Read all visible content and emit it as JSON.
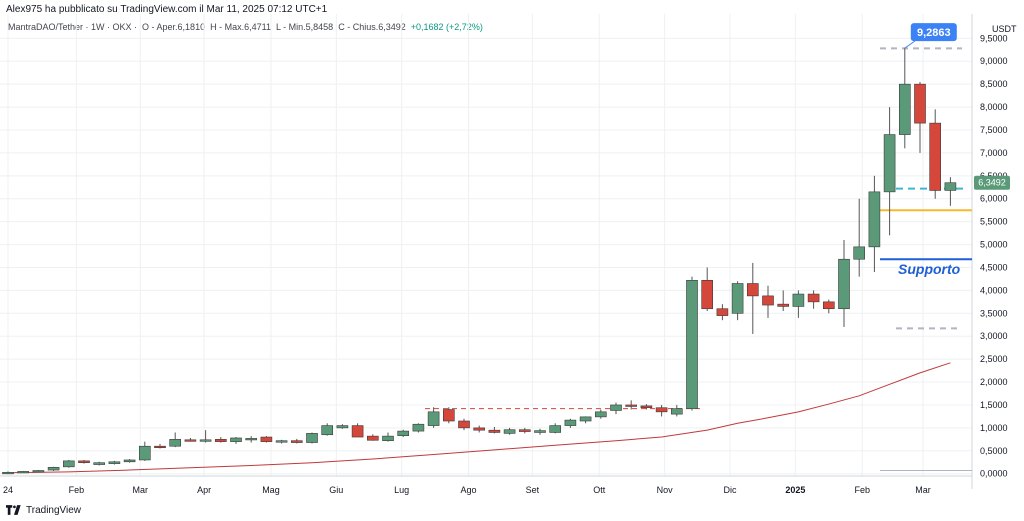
{
  "header": {
    "published_text": "Alex975 ha pubblicato su TradingView.com il Mar 11, 2025 07:12 UTC+1"
  },
  "symbol_info": {
    "text": "MantraDAO/Tether · 1W · OKX",
    "open": "O - Aper.6,1810",
    "high": "H - Max.6,4711",
    "low": "L - Min.5,8458",
    "close": "C - Chius.6,3492",
    "change": "+0,1682 (+2,72%)"
  },
  "footer": {
    "brand": "TradingView"
  },
  "colors": {
    "up": "#5b9a78",
    "down": "#d4473a",
    "ma": "#c0393b",
    "support": "#1e5fd6",
    "yellow": "#f5b92e",
    "cyan": "#3fb7d0",
    "grid": "#eef0f3",
    "text": "#131722",
    "axis_text": "#434651",
    "price_label_bg": "#5b9a78",
    "callout_bg": "#3b82f6"
  },
  "chart_data": {
    "type": "candlestick",
    "y_unit": "USDT",
    "ylim": [
      -0.05,
      9.9
    ],
    "y_ticks": [
      "0,0000",
      "0,5000",
      "1,0000",
      "1,5000",
      "2,0000",
      "2,5000",
      "3,0000",
      "3,5000",
      "4,0000",
      "4,5000",
      "5,0000",
      "5,5000",
      "6,0000",
      "6,5000",
      "7,0000",
      "7,5000",
      "8,0000",
      "8,5000",
      "9,0000",
      "9,5000"
    ],
    "y_tick_values": [
      0,
      0.5,
      1,
      1.5,
      2,
      2.5,
      3,
      3.5,
      4,
      4.5,
      5,
      5.5,
      6,
      6.5,
      7,
      7.5,
      8,
      8.5,
      9,
      9.5
    ],
    "x_labels": [
      {
        "label": "24",
        "week": 0
      },
      {
        "label": "Feb",
        "week": 4.5
      },
      {
        "label": "Mar",
        "week": 8.7
      },
      {
        "label": "Apr",
        "week": 12.9
      },
      {
        "label": "Mag",
        "week": 17.3
      },
      {
        "label": "Giu",
        "week": 21.6
      },
      {
        "label": "Lug",
        "week": 25.9
      },
      {
        "label": "Ago",
        "week": 30.3
      },
      {
        "label": "Set",
        "week": 34.5
      },
      {
        "label": "Ott",
        "week": 38.9
      },
      {
        "label": "Nov",
        "week": 43.2
      },
      {
        "label": "Dic",
        "week": 47.5
      },
      {
        "label": "2025",
        "week": 51.8
      },
      {
        "label": "Feb",
        "week": 56.2
      },
      {
        "label": "Mar",
        "week": 60.2
      }
    ],
    "candles": [
      {
        "o": 0.02,
        "h": 0.05,
        "l": 0.01,
        "c": 0.03
      },
      {
        "o": 0.03,
        "h": 0.06,
        "l": 0.02,
        "c": 0.05
      },
      {
        "o": 0.05,
        "h": 0.08,
        "l": 0.03,
        "c": 0.07
      },
      {
        "o": 0.08,
        "h": 0.15,
        "l": 0.06,
        "c": 0.14
      },
      {
        "o": 0.15,
        "h": 0.3,
        "l": 0.13,
        "c": 0.28
      },
      {
        "o": 0.28,
        "h": 0.3,
        "l": 0.22,
        "c": 0.24
      },
      {
        "o": 0.2,
        "h": 0.26,
        "l": 0.18,
        "c": 0.24
      },
      {
        "o": 0.22,
        "h": 0.28,
        "l": 0.2,
        "c": 0.26
      },
      {
        "o": 0.26,
        "h": 0.32,
        "l": 0.24,
        "c": 0.3
      },
      {
        "o": 0.3,
        "h": 0.7,
        "l": 0.28,
        "c": 0.6
      },
      {
        "o": 0.6,
        "h": 0.65,
        "l": 0.55,
        "c": 0.58
      },
      {
        "o": 0.6,
        "h": 0.9,
        "l": 0.58,
        "c": 0.75
      },
      {
        "o": 0.74,
        "h": 0.78,
        "l": 0.7,
        "c": 0.72
      },
      {
        "o": 0.72,
        "h": 0.95,
        "l": 0.68,
        "c": 0.74
      },
      {
        "o": 0.75,
        "h": 0.8,
        "l": 0.68,
        "c": 0.7
      },
      {
        "o": 0.7,
        "h": 0.8,
        "l": 0.65,
        "c": 0.78
      },
      {
        "o": 0.76,
        "h": 0.82,
        "l": 0.68,
        "c": 0.77
      },
      {
        "o": 0.8,
        "h": 0.82,
        "l": 0.68,
        "c": 0.7
      },
      {
        "o": 0.7,
        "h": 0.74,
        "l": 0.66,
        "c": 0.72
      },
      {
        "o": 0.72,
        "h": 0.76,
        "l": 0.66,
        "c": 0.68
      },
      {
        "o": 0.68,
        "h": 0.9,
        "l": 0.66,
        "c": 0.88
      },
      {
        "o": 0.85,
        "h": 1.1,
        "l": 0.83,
        "c": 1.05
      },
      {
        "o": 1.0,
        "h": 1.08,
        "l": 0.98,
        "c": 1.05
      },
      {
        "o": 1.05,
        "h": 1.1,
        "l": 0.8,
        "c": 0.8
      },
      {
        "o": 0.82,
        "h": 0.86,
        "l": 0.72,
        "c": 0.73
      },
      {
        "o": 0.72,
        "h": 0.9,
        "l": 0.7,
        "c": 0.82
      },
      {
        "o": 0.83,
        "h": 0.96,
        "l": 0.8,
        "c": 0.93
      },
      {
        "o": 0.93,
        "h": 1.1,
        "l": 0.9,
        "c": 1.08
      },
      {
        "o": 1.05,
        "h": 1.45,
        "l": 1.0,
        "c": 1.35
      },
      {
        "o": 1.4,
        "h": 1.45,
        "l": 1.1,
        "c": 1.15
      },
      {
        "o": 1.15,
        "h": 1.2,
        "l": 0.95,
        "c": 1.0
      },
      {
        "o": 1.0,
        "h": 1.05,
        "l": 0.9,
        "c": 0.95
      },
      {
        "o": 0.95,
        "h": 1.02,
        "l": 0.88,
        "c": 0.9
      },
      {
        "o": 0.88,
        "h": 1.0,
        "l": 0.85,
        "c": 0.96
      },
      {
        "o": 0.96,
        "h": 1.0,
        "l": 0.88,
        "c": 0.92
      },
      {
        "o": 0.9,
        "h": 0.98,
        "l": 0.85,
        "c": 0.94
      },
      {
        "o": 0.9,
        "h": 1.1,
        "l": 0.88,
        "c": 1.05
      },
      {
        "o": 1.05,
        "h": 1.2,
        "l": 1.0,
        "c": 1.17
      },
      {
        "o": 1.15,
        "h": 1.25,
        "l": 1.1,
        "c": 1.24
      },
      {
        "o": 1.24,
        "h": 1.4,
        "l": 1.2,
        "c": 1.35
      },
      {
        "o": 1.38,
        "h": 1.55,
        "l": 1.3,
        "c": 1.5
      },
      {
        "o": 1.5,
        "h": 1.6,
        "l": 1.4,
        "c": 1.48
      },
      {
        "o": 1.48,
        "h": 1.52,
        "l": 1.4,
        "c": 1.44
      },
      {
        "o": 1.44,
        "h": 1.5,
        "l": 1.25,
        "c": 1.35
      },
      {
        "o": 1.3,
        "h": 1.5,
        "l": 1.25,
        "c": 1.42
      },
      {
        "o": 1.42,
        "h": 4.3,
        "l": 1.38,
        "c": 4.22
      },
      {
        "o": 4.22,
        "h": 4.5,
        "l": 3.55,
        "c": 3.6
      },
      {
        "o": 3.6,
        "h": 3.7,
        "l": 3.35,
        "c": 3.45
      },
      {
        "o": 3.5,
        "h": 4.2,
        "l": 3.35,
        "c": 4.15
      },
      {
        "o": 4.15,
        "h": 4.6,
        "l": 3.05,
        "c": 3.88
      },
      {
        "o": 3.88,
        "h": 4.1,
        "l": 3.4,
        "c": 3.68
      },
      {
        "o": 3.7,
        "h": 4.0,
        "l": 3.55,
        "c": 3.65
      },
      {
        "o": 3.65,
        "h": 4.0,
        "l": 3.4,
        "c": 3.92
      },
      {
        "o": 3.92,
        "h": 4.0,
        "l": 3.6,
        "c": 3.75
      },
      {
        "o": 3.75,
        "h": 3.8,
        "l": 3.5,
        "c": 3.6
      },
      {
        "o": 3.6,
        "h": 5.1,
        "l": 3.2,
        "c": 4.68
      },
      {
        "o": 4.68,
        "h": 6.0,
        "l": 4.3,
        "c": 4.95
      },
      {
        "o": 4.95,
        "h": 6.5,
        "l": 4.4,
        "c": 6.15
      },
      {
        "o": 6.15,
        "h": 8.0,
        "l": 5.2,
        "c": 7.4
      },
      {
        "o": 7.4,
        "h": 9.2863,
        "l": 7.1,
        "c": 8.5
      },
      {
        "o": 8.5,
        "h": 8.55,
        "l": 7.0,
        "c": 7.65
      },
      {
        "o": 7.65,
        "h": 7.95,
        "l": 6.0,
        "c": 6.18
      },
      {
        "o": 6.181,
        "h": 6.4711,
        "l": 5.8458,
        "c": 6.3492
      }
    ],
    "moving_average": [
      [
        0,
        0.02
      ],
      [
        4,
        0.04
      ],
      [
        8,
        0.08
      ],
      [
        12,
        0.13
      ],
      [
        16,
        0.18
      ],
      [
        20,
        0.24
      ],
      [
        24,
        0.32
      ],
      [
        28,
        0.42
      ],
      [
        32,
        0.52
      ],
      [
        36,
        0.62
      ],
      [
        40,
        0.72
      ],
      [
        43,
        0.8
      ],
      [
        46,
        0.95
      ],
      [
        48,
        1.1
      ],
      [
        50,
        1.22
      ],
      [
        52,
        1.35
      ],
      [
        54,
        1.52
      ],
      [
        56,
        1.7
      ],
      [
        58,
        1.95
      ],
      [
        60,
        2.2
      ],
      [
        62,
        2.42
      ]
    ],
    "annotations": {
      "high_label": "9,2863",
      "last_price_label": "6,3492",
      "support_text": "Supporto",
      "support_level": 4.68,
      "yellow_level": 5.75,
      "cyan_level": 6.22,
      "gray_dashed_top": 9.28,
      "gray_dashed_low": 3.17,
      "gray_solid_bottom": 0.07,
      "red_dashed_level": 1.42
    }
  }
}
